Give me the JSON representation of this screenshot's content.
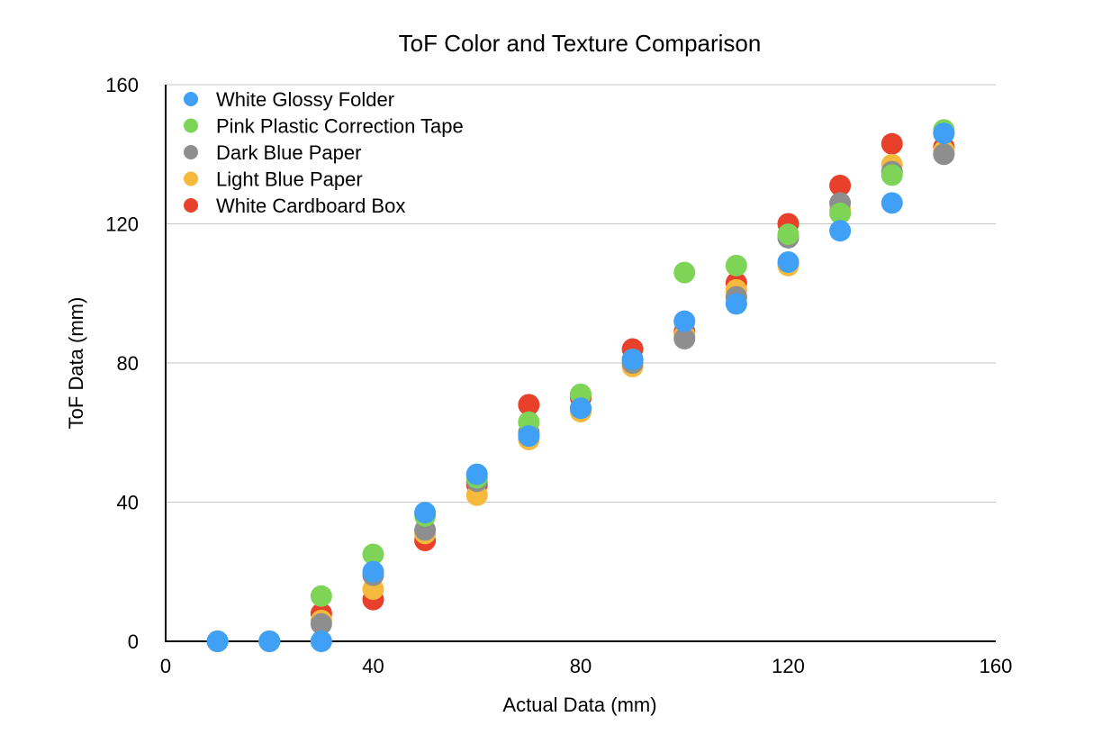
{
  "chart_data": {
    "type": "scatter",
    "title": "ToF Color and Texture Comparison",
    "xlabel": "Actual Data (mm)",
    "ylabel": "ToF Data (mm)",
    "xlim": [
      0,
      160
    ],
    "ylim": [
      0,
      160
    ],
    "x_ticks": [
      "0",
      "40",
      "80",
      "120",
      "160"
    ],
    "y_ticks": [
      "0",
      "40",
      "80",
      "120",
      "160"
    ],
    "grid": "horizontal",
    "legend_position": "top-left",
    "series": [
      {
        "name": "White Cardboard Box",
        "color": "#e8402a",
        "x": [
          10,
          20,
          30,
          40,
          50,
          60,
          70,
          80,
          90,
          100,
          110,
          120,
          130,
          140,
          150
        ],
        "y": [
          0,
          0,
          8,
          12,
          29,
          45,
          68,
          70,
          84,
          89,
          103,
          120,
          131,
          143,
          142
        ]
      },
      {
        "name": "Light Blue Paper",
        "color": "#f5b93d",
        "x": [
          10,
          20,
          30,
          40,
          50,
          60,
          70,
          80,
          90,
          100,
          110,
          120,
          130,
          140,
          150
        ],
        "y": [
          0,
          0,
          6,
          15,
          31,
          42,
          58,
          66,
          79,
          88,
          101,
          108,
          124,
          137,
          141
        ]
      },
      {
        "name": "Dark Blue Paper",
        "color": "#8e8e8e",
        "x": [
          10,
          20,
          30,
          40,
          50,
          60,
          70,
          80,
          90,
          100,
          110,
          120,
          130,
          140,
          150
        ],
        "y": [
          0,
          0,
          5,
          19,
          32,
          46,
          60,
          67,
          80,
          87,
          99,
          116,
          126,
          135,
          140
        ]
      },
      {
        "name": "Pink Plastic Correction Tape",
        "color": "#7dd457",
        "x": [
          10,
          20,
          30,
          40,
          50,
          60,
          70,
          80,
          90,
          100,
          110,
          120,
          130,
          140,
          150
        ],
        "y": [
          0,
          0,
          13,
          25,
          36,
          47,
          63,
          71,
          81,
          106,
          108,
          117,
          123,
          134,
          147
        ]
      },
      {
        "name": "White Glossy Folder",
        "color": "#3fa0f5",
        "x": [
          10,
          20,
          30,
          40,
          50,
          60,
          70,
          80,
          90,
          100,
          110,
          120,
          130,
          140,
          150
        ],
        "y": [
          0,
          0,
          0,
          20,
          37,
          48,
          59,
          67,
          81,
          92,
          97,
          109,
          118,
          126,
          146
        ]
      }
    ],
    "legend_order": [
      "White Glossy Folder",
      "Pink Plastic Correction Tape",
      "Dark Blue Paper",
      "Light Blue Paper",
      "White Cardboard Box"
    ]
  }
}
